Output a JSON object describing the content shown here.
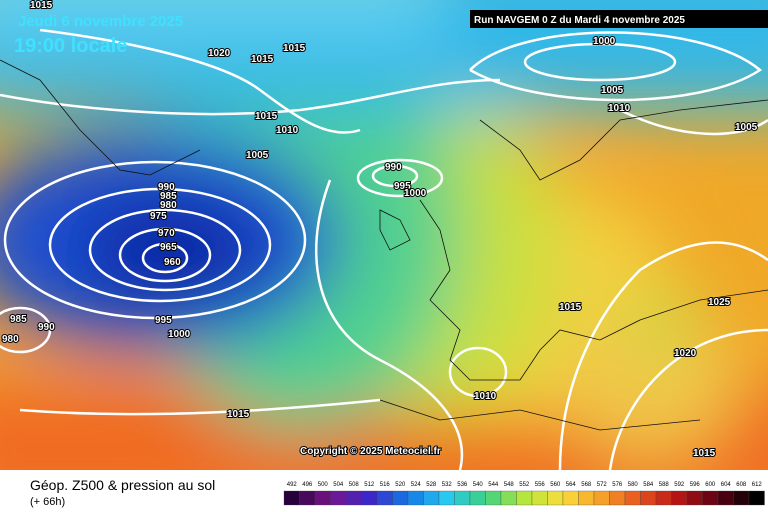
{
  "header": {
    "date": "Jeudi 6 novembre 2025",
    "time": "19:00 locale",
    "run": "Run NAVGEM 0 Z du Mardi 4 novembre 2025"
  },
  "copyright": "Copyright © 2025 Meteociel.fr",
  "footer": {
    "title": "Géop. Z500 & pression au sol",
    "lead": "(+ 66h)"
  },
  "isobar_labels": [
    "1015",
    "1020",
    "1015",
    "1015",
    "1015",
    "1010",
    "1005",
    "990",
    "985",
    "980",
    "975",
    "970",
    "965",
    "960",
    "995",
    "1000",
    "985",
    "990",
    "980",
    "990",
    "995",
    "1000",
    "1000",
    "1005",
    "1010",
    "1005",
    "1015",
    "1025",
    "1020",
    "1010",
    "1015",
    "1015"
  ],
  "legend_scale": [
    "492",
    "496",
    "500",
    "504",
    "508",
    "512",
    "516",
    "520",
    "524",
    "528",
    "532",
    "536",
    "540",
    "544",
    "548",
    "552",
    "556",
    "560",
    "564",
    "568",
    "572",
    "576",
    "580",
    "584",
    "588",
    "592",
    "596",
    "600",
    "604",
    "608",
    "612"
  ]
}
